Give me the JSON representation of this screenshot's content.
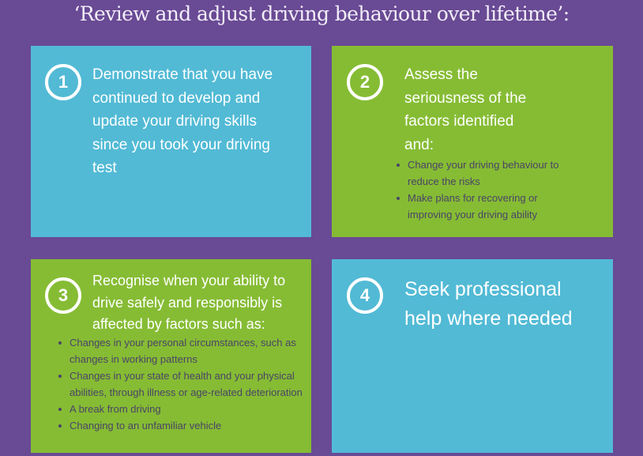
{
  "title": "‘Review and adjust driving behaviour over lifetime’:",
  "colors": {
    "background": "#694a94",
    "blue": "#52bad5",
    "green": "#86bc34"
  },
  "cards": [
    {
      "number": "1",
      "heading": "Demonstrate that you have continued to develop and update your driving skills since you took your driving test",
      "bullets": []
    },
    {
      "number": "2",
      "heading": "Assess the seriousness of the factors identified and:",
      "bullets": [
        "Change your driving behaviour to reduce the risks",
        "Make plans for recovering or improving your driving ability"
      ]
    },
    {
      "number": "3",
      "heading": "Recognise when your ability to drive safely and responsibly is affected by factors such as:",
      "bullets": [
        "Changes in your personal circumstances, such as changes in working patterns",
        "Changes in your state of health and your physical abilities, through illness or age-related deterioration",
        "A break from driving",
        "Changing to an unfamiliar vehicle"
      ]
    },
    {
      "number": "4",
      "heading": "Seek professional help where needed",
      "bullets": []
    }
  ]
}
